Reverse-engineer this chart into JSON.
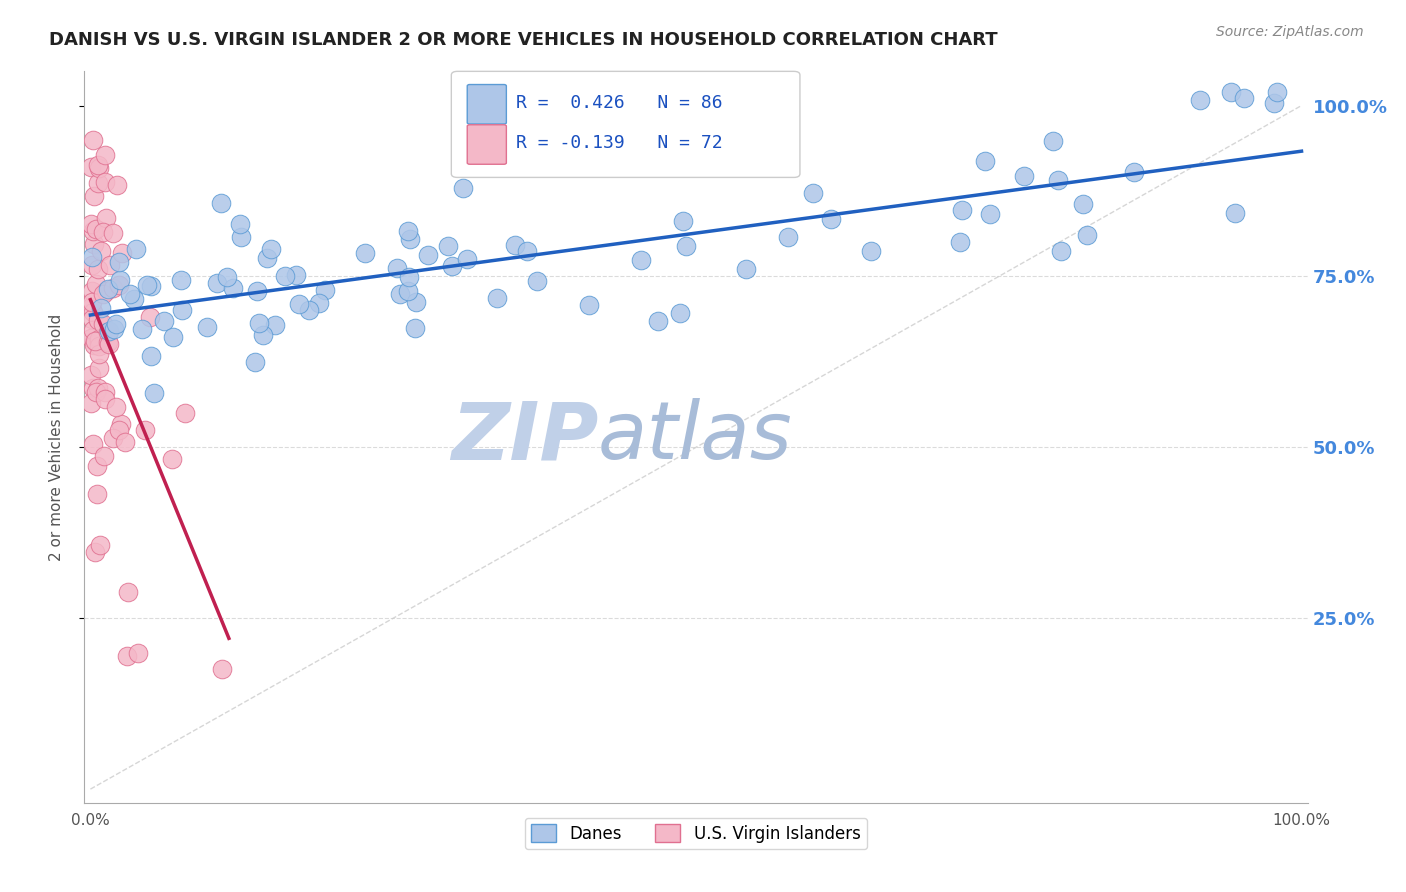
{
  "title": "DANISH VS U.S. VIRGIN ISLANDER 2 OR MORE VEHICLES IN HOUSEHOLD CORRELATION CHART",
  "source_text": "Source: ZipAtlas.com",
  "ylabel": "2 or more Vehicles in Household",
  "danes_R": 0.426,
  "danes_N": 86,
  "usvi_R": -0.139,
  "usvi_N": 72,
  "danes_color": "#aec6e8",
  "danes_edge": "#5b9bd5",
  "usvi_color": "#f4b8c8",
  "usvi_edge": "#e07090",
  "trend_blue": "#2060c0",
  "trend_pink": "#c02050",
  "diag_color": "#cccccc",
  "grid_color": "#cccccc",
  "legend_R_color": "#1a50c0",
  "watermark_color_zip": "#c0d0e8",
  "watermark_color_atlas": "#a8bcd8",
  "background": "#ffffff",
  "title_color": "#222222",
  "source_color": "#888888",
  "tick_color": "#555555",
  "right_tick_color": "#4488dd"
}
